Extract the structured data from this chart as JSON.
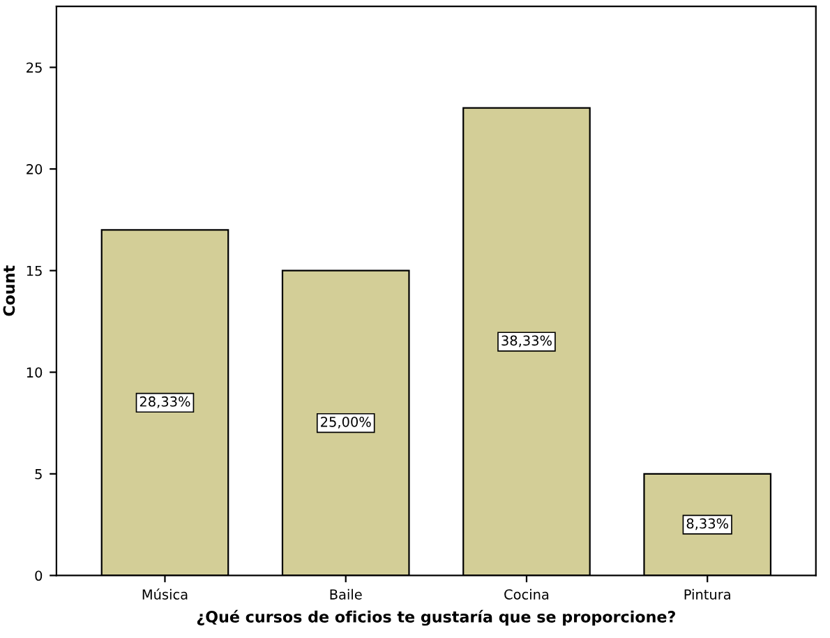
{
  "chart_data": {
    "type": "bar",
    "xlabel": "¿Qué cursos de oficios te gustaría que se proporcione?",
    "ylabel": "Count",
    "categories": [
      "Música",
      "Baile",
      "Cocina",
      "Pintura"
    ],
    "values": [
      17,
      15,
      23,
      5
    ],
    "annotations": [
      {
        "text": "28,33%",
        "x": "Música",
        "y": 8.5
      },
      {
        "text": "25,00%",
        "x": "Baile",
        "y": 7.5
      },
      {
        "text": "38,33%",
        "x": "Cocina",
        "y": 11.5
      },
      {
        "text": "8,33%",
        "x": "Pintura",
        "y": 2.5
      }
    ],
    "color": "#d3ce97",
    "ylim": [
      0,
      28
    ],
    "yticks": [
      0,
      5,
      10,
      15,
      20,
      25
    ],
    "grid": false,
    "legend": false
  }
}
